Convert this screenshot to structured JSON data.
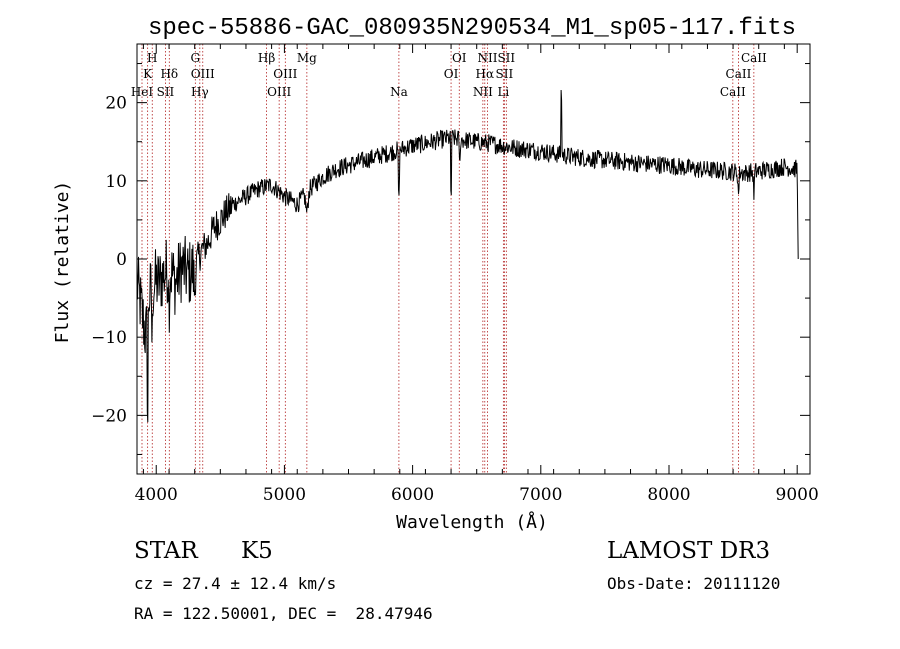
{
  "chart_data": {
    "type": "line",
    "title": "spec-55886-GAC_080935N290534_M1_sp05-117.fits",
    "xlabel": "Wavelength (Å)",
    "ylabel": "Flux (relative)",
    "xlim": [
      3850,
      9100
    ],
    "ylim": [
      -27.5,
      27.5
    ],
    "xticks": [
      4000,
      5000,
      6000,
      7000,
      8000,
      9000
    ],
    "xtick_labels": [
      "4000",
      "5000",
      "6000",
      "7000",
      "8000",
      "9000"
    ],
    "yticks": [
      -20,
      -10,
      0,
      10,
      20
    ],
    "ytick_labels": [
      "−20",
      "−10",
      "0",
      "10",
      "20"
    ],
    "series": [
      {
        "name": "spectrum",
        "anchors_x": [
          3850,
          3880,
          3900,
          3920,
          3940,
          3960,
          3990,
          4020,
          4060,
          4100,
          4150,
          4200,
          4250,
          4300,
          4350,
          4400,
          4450,
          4500,
          4600,
          4700,
          4800,
          4900,
          5000,
          5100,
          5200,
          5300,
          5400,
          5500,
          5600,
          5700,
          5800,
          5900,
          6000,
          6100,
          6200,
          6300,
          6400,
          6500,
          6600,
          6700,
          6800,
          6900,
          7000,
          7100,
          7200,
          7400,
          7600,
          7800,
          8000,
          8200,
          8400,
          8600,
          8800,
          8900,
          9000,
          9010
        ],
        "anchors_y": [
          -3,
          -6,
          -8,
          -10,
          -5,
          -4,
          -3,
          -3,
          -2,
          -1,
          -3,
          -1,
          -2,
          -1,
          1,
          2,
          4,
          5,
          7,
          8,
          9,
          9.5,
          8,
          7,
          9,
          10.5,
          11.5,
          12,
          12.5,
          13,
          13.5,
          14,
          14.5,
          14.8,
          15.2,
          15.5,
          15.2,
          15,
          14.8,
          14.5,
          14.2,
          14,
          13.8,
          13.5,
          13.2,
          12.8,
          12.5,
          12.2,
          12,
          11.5,
          11.3,
          11,
          11.5,
          11.8,
          11.5,
          0
        ],
        "features": [
          {
            "wavelength": 3933,
            "depth": -15,
            "width": 4
          },
          {
            "wavelength": 3968,
            "depth": -8,
            "width": 4
          },
          {
            "wavelength": 4101,
            "depth": -4,
            "width": 6
          },
          {
            "wavelength": 4300,
            "depth": -3,
            "width": 8
          },
          {
            "wavelength": 5175,
            "depth": -2.5,
            "width": 12
          },
          {
            "wavelength": 5893,
            "depth": -7,
            "width": 5
          },
          {
            "wavelength": 6300,
            "depth": -11,
            "width": 3
          },
          {
            "wavelength": 6368,
            "depth": -5,
            "width": 3
          },
          {
            "wavelength": 7160,
            "depth": 12,
            "width": 3
          },
          {
            "wavelength": 8542,
            "depth": -3,
            "width": 5
          },
          {
            "wavelength": 8662,
            "depth": -3,
            "width": 5
          }
        ]
      }
    ],
    "lines": [
      {
        "wavelength": 3889,
        "labels": [
          "HeI"
        ],
        "row": 2
      },
      {
        "wavelength": 3933,
        "labels": [
          "K"
        ],
        "row": 1
      },
      {
        "wavelength": 3969,
        "labels": [
          "H"
        ],
        "row": 0
      },
      {
        "wavelength": 4072,
        "labels": [
          "SII"
        ],
        "row": 2
      },
      {
        "wavelength": 4102,
        "labels": [
          "Hδ"
        ],
        "row": 1
      },
      {
        "wavelength": 4305,
        "labels": [
          "G"
        ],
        "row": 0
      },
      {
        "wavelength": 4340,
        "labels": [
          "Hγ"
        ],
        "row": 2
      },
      {
        "wavelength": 4363,
        "labels": [
          "OIII"
        ],
        "row": 1
      },
      {
        "wavelength": 4861,
        "labels": [
          "Hβ"
        ],
        "row": 0
      },
      {
        "wavelength": 4959,
        "labels": [
          "OIII"
        ],
        "row": 2
      },
      {
        "wavelength": 5007,
        "labels": [
          "OIII"
        ],
        "row": 1
      },
      {
        "wavelength": 5175,
        "labels": [
          "Mg"
        ],
        "row": 0
      },
      {
        "wavelength": 5893,
        "labels": [
          "Na"
        ],
        "row": 2
      },
      {
        "wavelength": 6300,
        "labels": [
          "OI"
        ],
        "row": 1
      },
      {
        "wavelength": 6364,
        "labels": [
          "OI"
        ],
        "row": 0
      },
      {
        "wavelength": 6548,
        "labels": [
          "NII"
        ],
        "row": 2
      },
      {
        "wavelength": 6563,
        "labels": [
          "Hα"
        ],
        "row": 1
      },
      {
        "wavelength": 6584,
        "labels": [
          "NII"
        ],
        "row": 0
      },
      {
        "wavelength": 6708,
        "labels": [
          "Li"
        ],
        "row": 2
      },
      {
        "wavelength": 6716,
        "labels": [
          "SII"
        ],
        "row": 1
      },
      {
        "wavelength": 6731,
        "labels": [
          "SII"
        ],
        "row": 0
      },
      {
        "wavelength": 8498,
        "labels": [
          "CaII"
        ],
        "row": 2
      },
      {
        "wavelength": 8542,
        "labels": [
          "CaII"
        ],
        "row": 1
      },
      {
        "wavelength": 8662,
        "labels": [
          "CaII"
        ],
        "row": 0
      }
    ]
  },
  "info": {
    "class_label": "STAR",
    "subclass_label": "K5",
    "survey": "LAMOST DR3",
    "cz_text": "cz = 27.4 ± 12.4 km/s",
    "obs_date_text": "Obs-Date: 20111120",
    "coords_text": "RA = 122.50001, DEC =  28.47946"
  },
  "colors": {
    "line_marker": "#b22222",
    "spectrum": "#000000",
    "axis": "#000000"
  }
}
